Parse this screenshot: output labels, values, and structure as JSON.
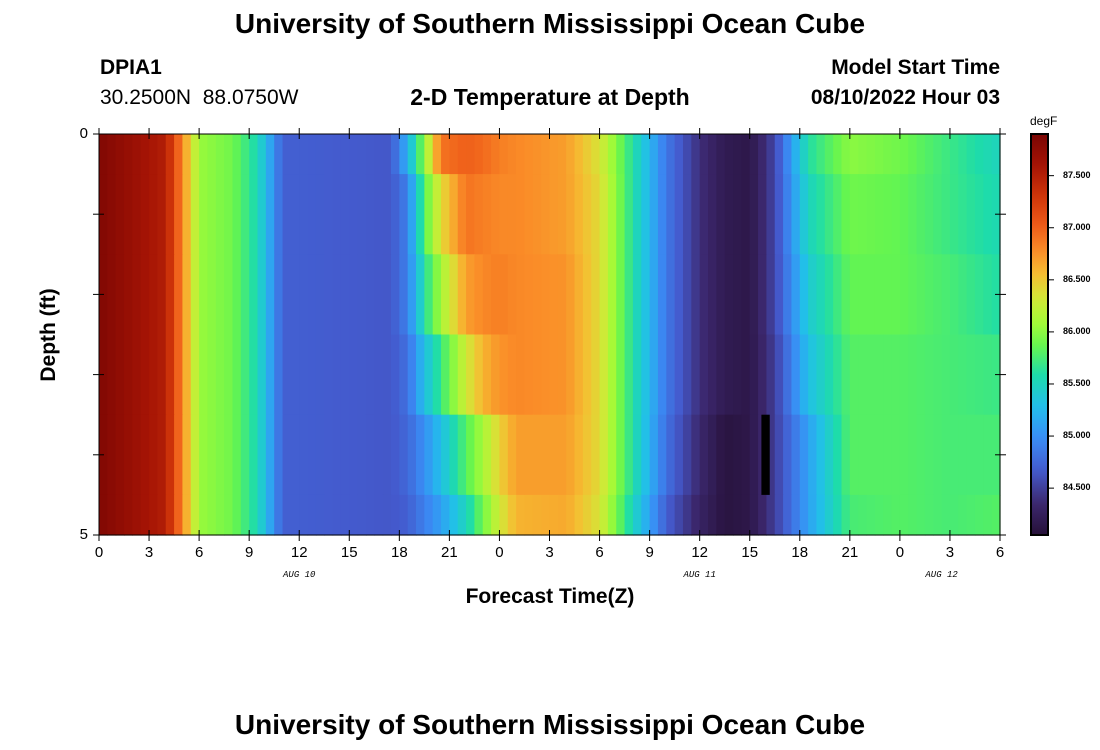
{
  "title": "University of Southern Mississippi Ocean Cube",
  "station": {
    "id": "DPIA1",
    "lat": "30.2500N",
    "lon": "88.0750W"
  },
  "model_start": {
    "label": "Model Start Time",
    "value": "08/10/2022 Hour 03"
  },
  "chart_data": {
    "type": "heatmap",
    "title": "2-D Temperature at Depth",
    "xlabel": "Forecast Time(Z)",
    "ylabel": "Depth (ft)",
    "x_hours_start": 0,
    "x_hours_end": 54,
    "x_ticks": [
      "0",
      "3",
      "6",
      "9",
      "12",
      "15",
      "18",
      "21",
      "0",
      "3",
      "6",
      "9",
      "12",
      "15",
      "18",
      "21",
      "0",
      "3",
      "6"
    ],
    "day_labels": [
      {
        "label": "AUG 10",
        "hour": 12
      },
      {
        "label": "AUG 11",
        "hour": 36
      },
      {
        "label": "AUG 12",
        "hour": 50.5
      }
    ],
    "y_ticks": [
      "0",
      "5"
    ],
    "ylim": [
      0,
      5
    ],
    "depth_rows": [
      [
        0.0,
        0.5
      ],
      [
        0.5,
        1.5
      ],
      [
        1.5,
        2.5
      ],
      [
        2.5,
        3.5
      ],
      [
        3.5,
        4.5
      ],
      [
        4.5,
        5.0
      ]
    ],
    "colorbar": {
      "unit": "degF",
      "min": 84.05,
      "max": 87.9,
      "ticks": [
        "87.500",
        "87.000",
        "86.500",
        "86.000",
        "85.500",
        "85.000",
        "84.500"
      ]
    },
    "anchors": [
      [
        0,
        87.85,
        87.85,
        87.85,
        87.85,
        87.85,
        87.85
      ],
      [
        4,
        87.5,
        87.5,
        87.5,
        87.5,
        87.5,
        87.5
      ],
      [
        5,
        86.8,
        86.8,
        86.8,
        86.8,
        86.8,
        86.8
      ],
      [
        6,
        86.05,
        86.05,
        86.05,
        86.05,
        86.05,
        86.05
      ],
      [
        8,
        85.9,
        85.9,
        85.9,
        85.9,
        85.9,
        85.9
      ],
      [
        9.5,
        85.55,
        85.55,
        85.55,
        85.55,
        85.55,
        85.55
      ],
      [
        11,
        84.7,
        84.7,
        84.7,
        84.7,
        84.7,
        84.7
      ],
      [
        17.5,
        84.65,
        84.65,
        84.65,
        84.65,
        84.65,
        84.65
      ],
      [
        18.5,
        85.2,
        84.9,
        84.9,
        84.8,
        84.75,
        84.7
      ],
      [
        19.5,
        86.0,
        85.8,
        85.6,
        85.3,
        85.0,
        84.9
      ],
      [
        20.5,
        86.9,
        86.4,
        86.1,
        85.7,
        85.3,
        85.1
      ],
      [
        22,
        87.0,
        86.9,
        86.7,
        86.3,
        85.8,
        85.5
      ],
      [
        23,
        86.95,
        86.85,
        86.8,
        86.6,
        86.1,
        85.9
      ],
      [
        24,
        86.85,
        86.8,
        86.85,
        86.75,
        86.45,
        86.3
      ],
      [
        25,
        86.8,
        86.8,
        86.8,
        86.8,
        86.7,
        86.6
      ],
      [
        28,
        86.7,
        86.7,
        86.75,
        86.75,
        86.7,
        86.65
      ],
      [
        30,
        86.35,
        86.4,
        86.4,
        86.4,
        86.4,
        86.35
      ],
      [
        32,
        85.6,
        85.6,
        85.6,
        85.6,
        85.6,
        85.5
      ],
      [
        34,
        84.85,
        84.85,
        84.85,
        84.85,
        84.8,
        84.7
      ],
      [
        36,
        84.4,
        84.4,
        84.4,
        84.4,
        84.35,
        84.3
      ],
      [
        37.5,
        84.2,
        84.2,
        84.2,
        84.2,
        84.1,
        84.1
      ],
      [
        39,
        84.15,
        84.15,
        84.15,
        84.15,
        84.15,
        84.15
      ],
      [
        40.5,
        84.55,
        84.55,
        84.55,
        84.5,
        84.5,
        84.5
      ],
      [
        42.5,
        85.6,
        85.5,
        85.4,
        85.3,
        85.1,
        85.1
      ],
      [
        45,
        86.0,
        85.9,
        85.85,
        85.8,
        85.8,
        85.75
      ],
      [
        48,
        85.9,
        85.85,
        85.85,
        85.8,
        85.8,
        85.8
      ],
      [
        51,
        85.7,
        85.7,
        85.75,
        85.75,
        85.75,
        85.75
      ],
      [
        54,
        85.5,
        85.55,
        85.6,
        85.7,
        85.75,
        85.8
      ]
    ],
    "black_bar": {
      "hour_start": 39.7,
      "hour_end": 40.2,
      "depth_start": 3.5,
      "depth_end": 4.5
    }
  }
}
